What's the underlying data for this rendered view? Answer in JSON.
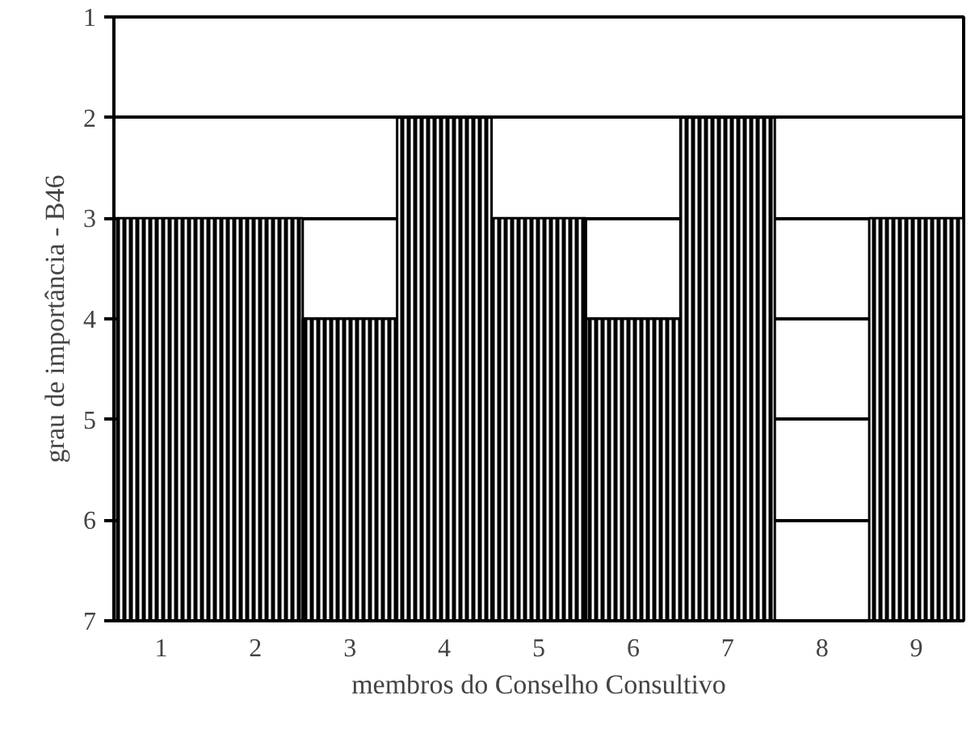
{
  "chart_data": {
    "type": "bar",
    "xlabel": "membros do Conselho Consultivo",
    "ylabel": "grau de importância - B46",
    "categories": [
      "1",
      "2",
      "3",
      "4",
      "5",
      "6",
      "7",
      "8",
      "9"
    ],
    "values": [
      -4,
      -4,
      -3,
      -5,
      -4,
      -3,
      -5,
      null,
      -4
    ],
    "base": [
      7,
      7,
      7,
      7,
      7,
      7,
      7,
      null,
      7
    ],
    "color": "#000000",
    "ylim": [
      7,
      1
    ],
    "yticks": [
      1,
      2,
      3,
      4,
      5,
      6,
      7
    ],
    "grid": "y"
  }
}
